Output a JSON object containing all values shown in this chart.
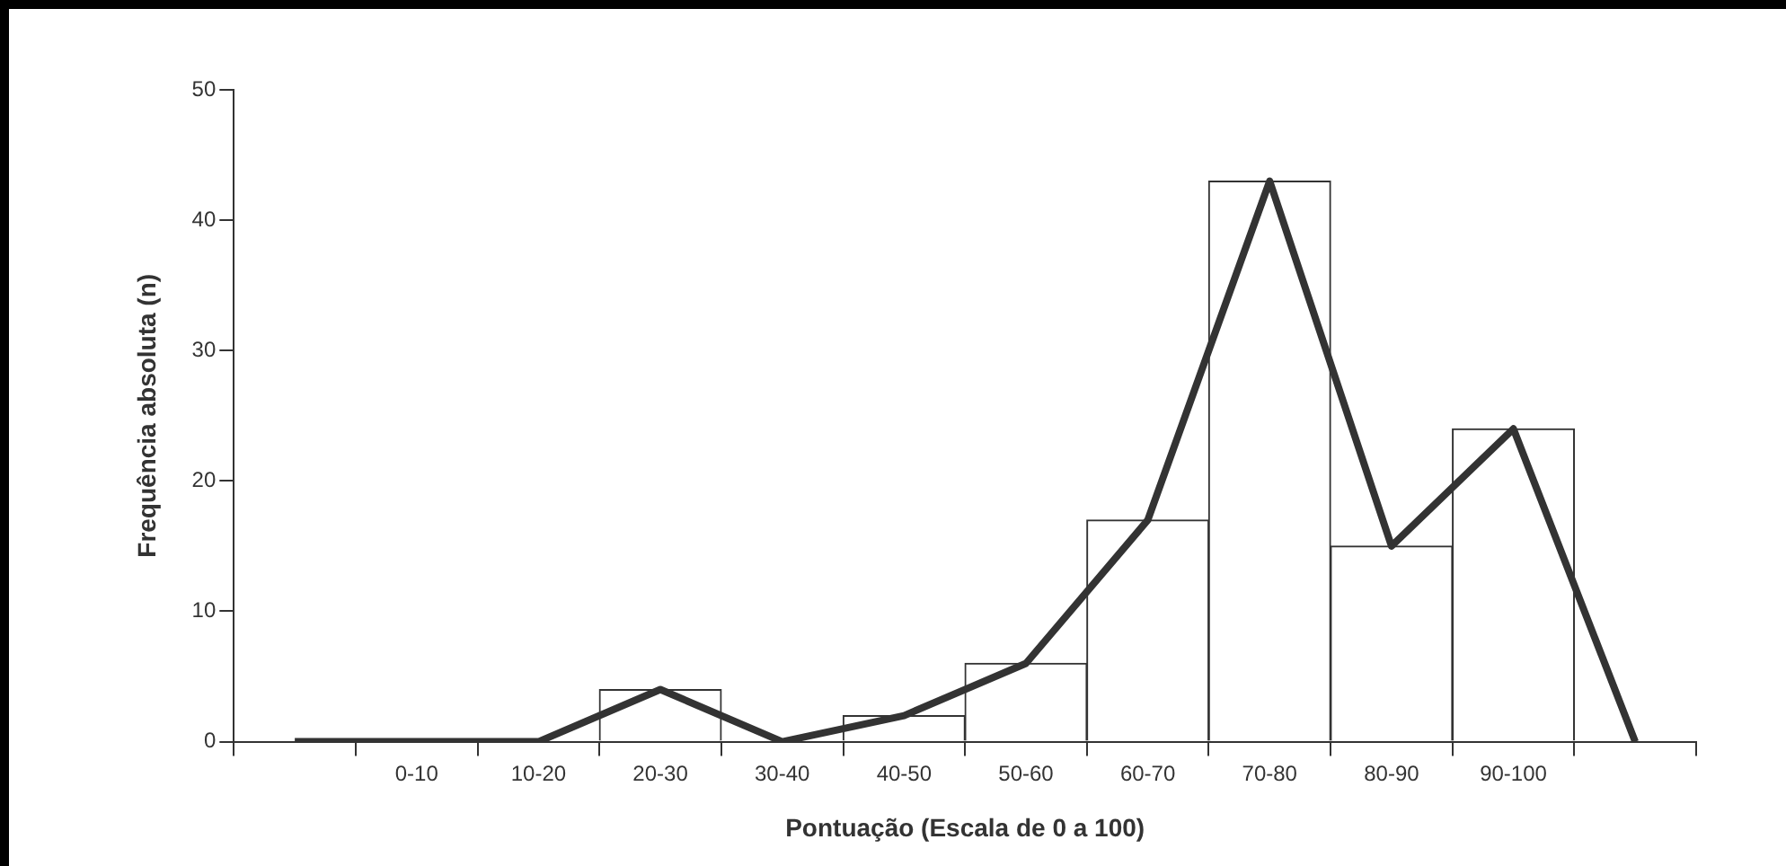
{
  "chart_data": {
    "type": "bar",
    "xlabel": "Pontuação (Escala de 0 a 100)",
    "ylabel": "Frequência absoluta (n)",
    "categories": [
      null,
      "0-10",
      "10-20",
      "20-30",
      "30-40",
      "40-50",
      "50-60",
      "60-70",
      "70-80",
      "80-90",
      "90-100",
      null
    ],
    "series": [
      {
        "color": "#ffffff",
        "values": [
          null,
          0,
          0,
          4,
          0,
          2,
          6,
          17,
          43,
          15,
          24,
          null
        ]
      },
      {
        "type": "line",
        "color": "#333333",
        "values": [
          0,
          0,
          0,
          4,
          0,
          2,
          6,
          17,
          43,
          15,
          24,
          0
        ]
      }
    ],
    "ylim": [
      0,
      50
    ],
    "yticks": [
      0,
      10,
      20,
      30,
      40,
      50
    ],
    "grid": false,
    "legend": false,
    "marker": "none"
  }
}
